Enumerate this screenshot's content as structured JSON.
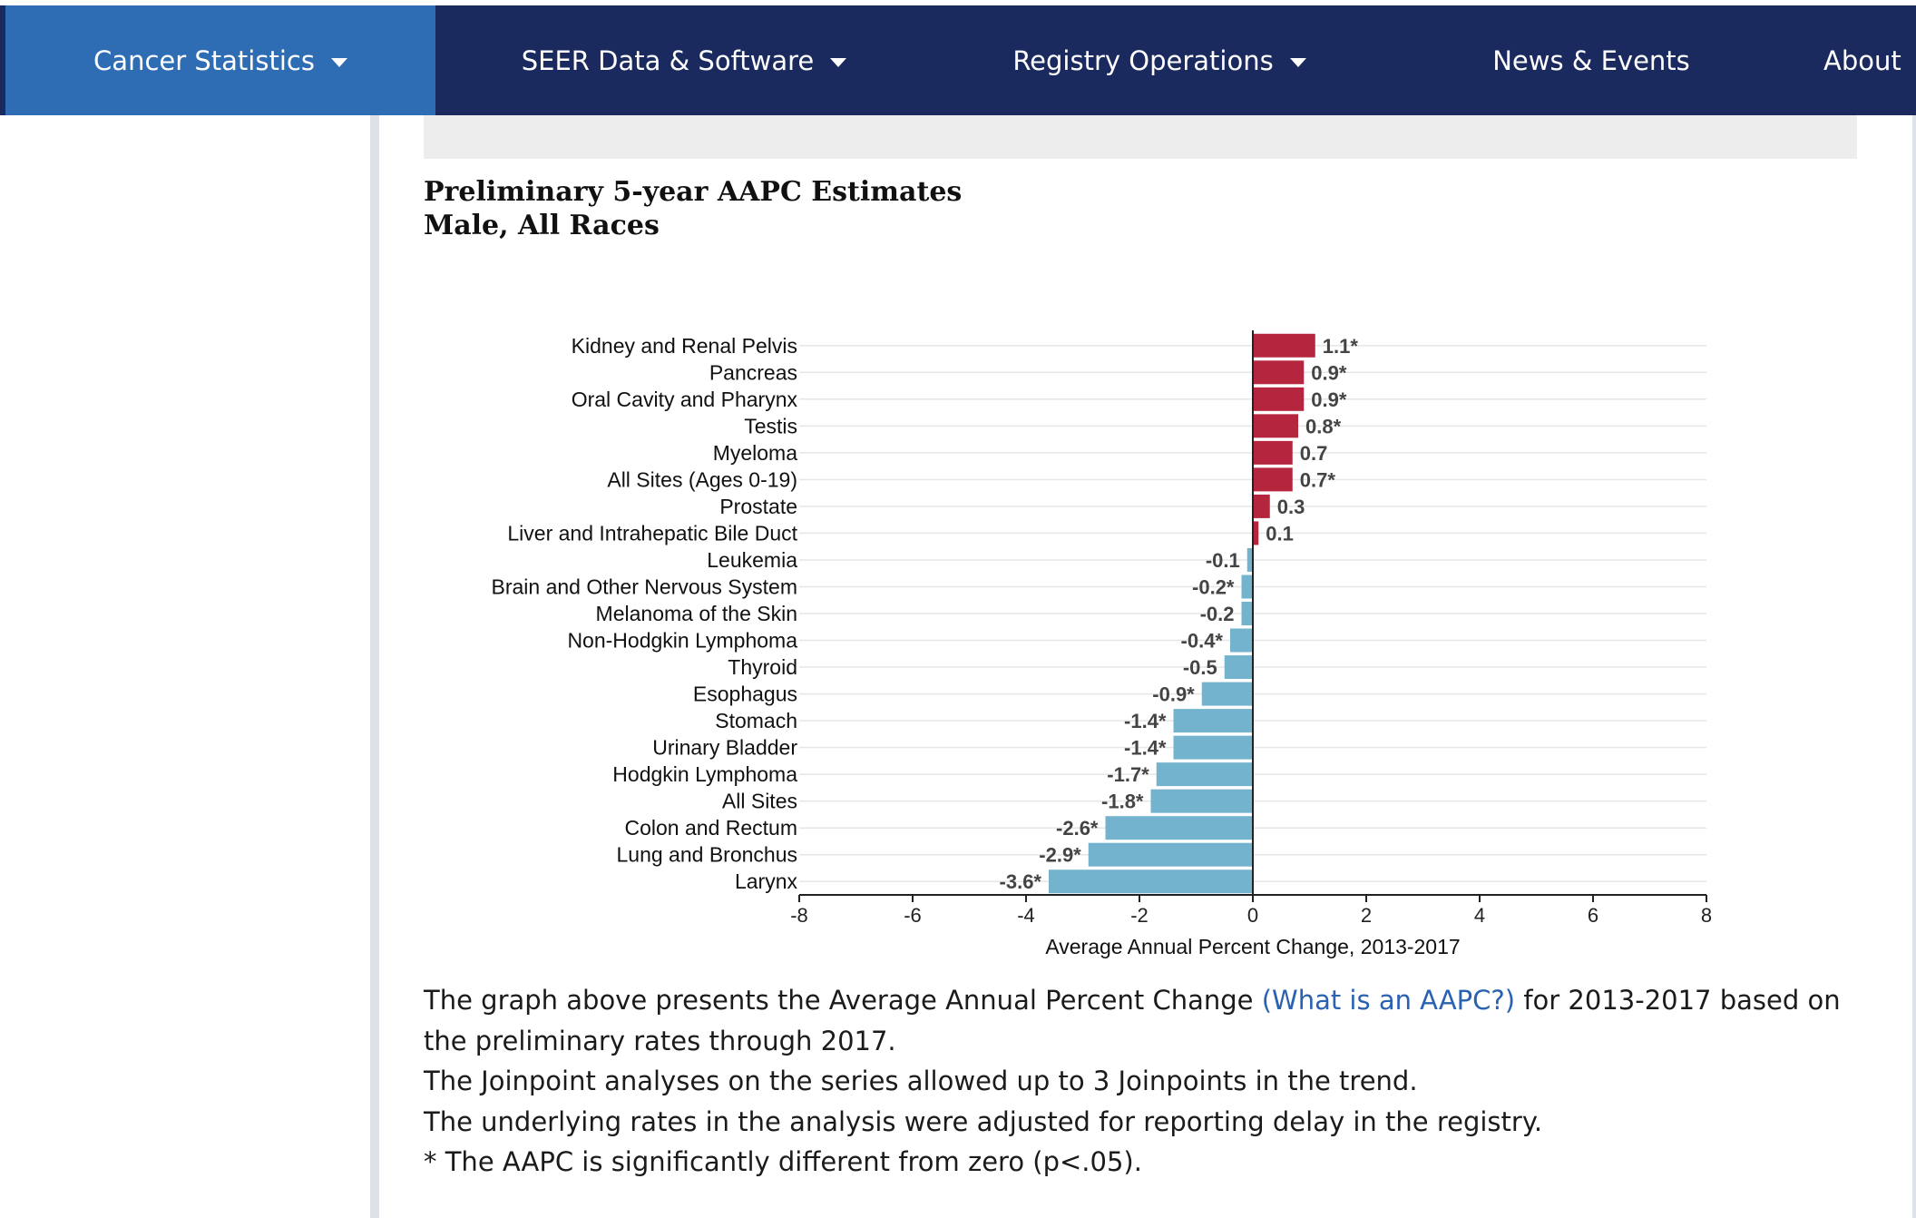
{
  "nav": {
    "items": [
      {
        "label": "Cancer Statistics",
        "dropdown": true
      },
      {
        "label": "SEER Data & Software",
        "dropdown": true
      },
      {
        "label": "Registry Operations",
        "dropdown": true
      },
      {
        "label": "News & Events",
        "dropdown": false
      },
      {
        "label": "About",
        "dropdown": false
      }
    ]
  },
  "chart_data": {
    "type": "bar",
    "orientation": "horizontal",
    "title": "Preliminary 5-year AAPC Estimates",
    "subtitle": "Male, All Races",
    "xlabel": "Average Annual Percent Change, 2013-2017",
    "ylabel": "",
    "xlim": [
      -8,
      8
    ],
    "xticks": [
      "-8",
      "-6",
      "-4",
      "-2",
      "0",
      "2",
      "4",
      "6",
      "8"
    ],
    "grid": true,
    "positive_color": "#b5263e",
    "negative_color": "#73b3cd",
    "categories": [
      "Kidney and Renal Pelvis",
      "Pancreas",
      "Oral Cavity and Pharynx",
      "Testis",
      "Myeloma",
      "All Sites (Ages 0-19)",
      "Prostate",
      "Liver and Intrahepatic Bile Duct",
      "Leukemia",
      "Brain and Other Nervous System",
      "Melanoma of the Skin",
      "Non-Hodgkin Lymphoma",
      "Thyroid",
      "Esophagus",
      "Stomach",
      "Urinary Bladder",
      "Hodgkin Lymphoma",
      "All Sites",
      "Colon and Rectum",
      "Lung and Bronchus",
      "Larynx"
    ],
    "values": [
      1.1,
      0.9,
      0.9,
      0.8,
      0.7,
      0.7,
      0.3,
      0.1,
      -0.1,
      -0.2,
      -0.2,
      -0.4,
      -0.5,
      -0.9,
      -1.4,
      -1.4,
      -1.7,
      -1.8,
      -2.6,
      -2.9,
      -3.6
    ],
    "labels": [
      "1.1*",
      "0.9*",
      "0.9*",
      "0.8*",
      "0.7",
      "0.7*",
      "0.3",
      "0.1",
      "-0.1",
      "-0.2*",
      "-0.2",
      "-0.4*",
      "-0.5",
      "-0.9*",
      "-1.4*",
      "-1.4*",
      "-1.7*",
      "-1.8*",
      "-2.6*",
      "-2.9*",
      "-3.6*"
    ]
  },
  "description": {
    "line1_before": "The graph above presents the Average Annual Percent Change ",
    "line1_link": "(What is an AAPC?)",
    "line1_after": " for 2013-2017 based on the preliminary rates through 2017.",
    "line2": "The Joinpoint analyses on the series allowed up to 3 Joinpoints in the trend.",
    "line3": "The underlying rates in the analysis were adjusted for reporting delay in the registry.",
    "line4": "* The AAPC is significantly different from zero (p<.05)."
  }
}
